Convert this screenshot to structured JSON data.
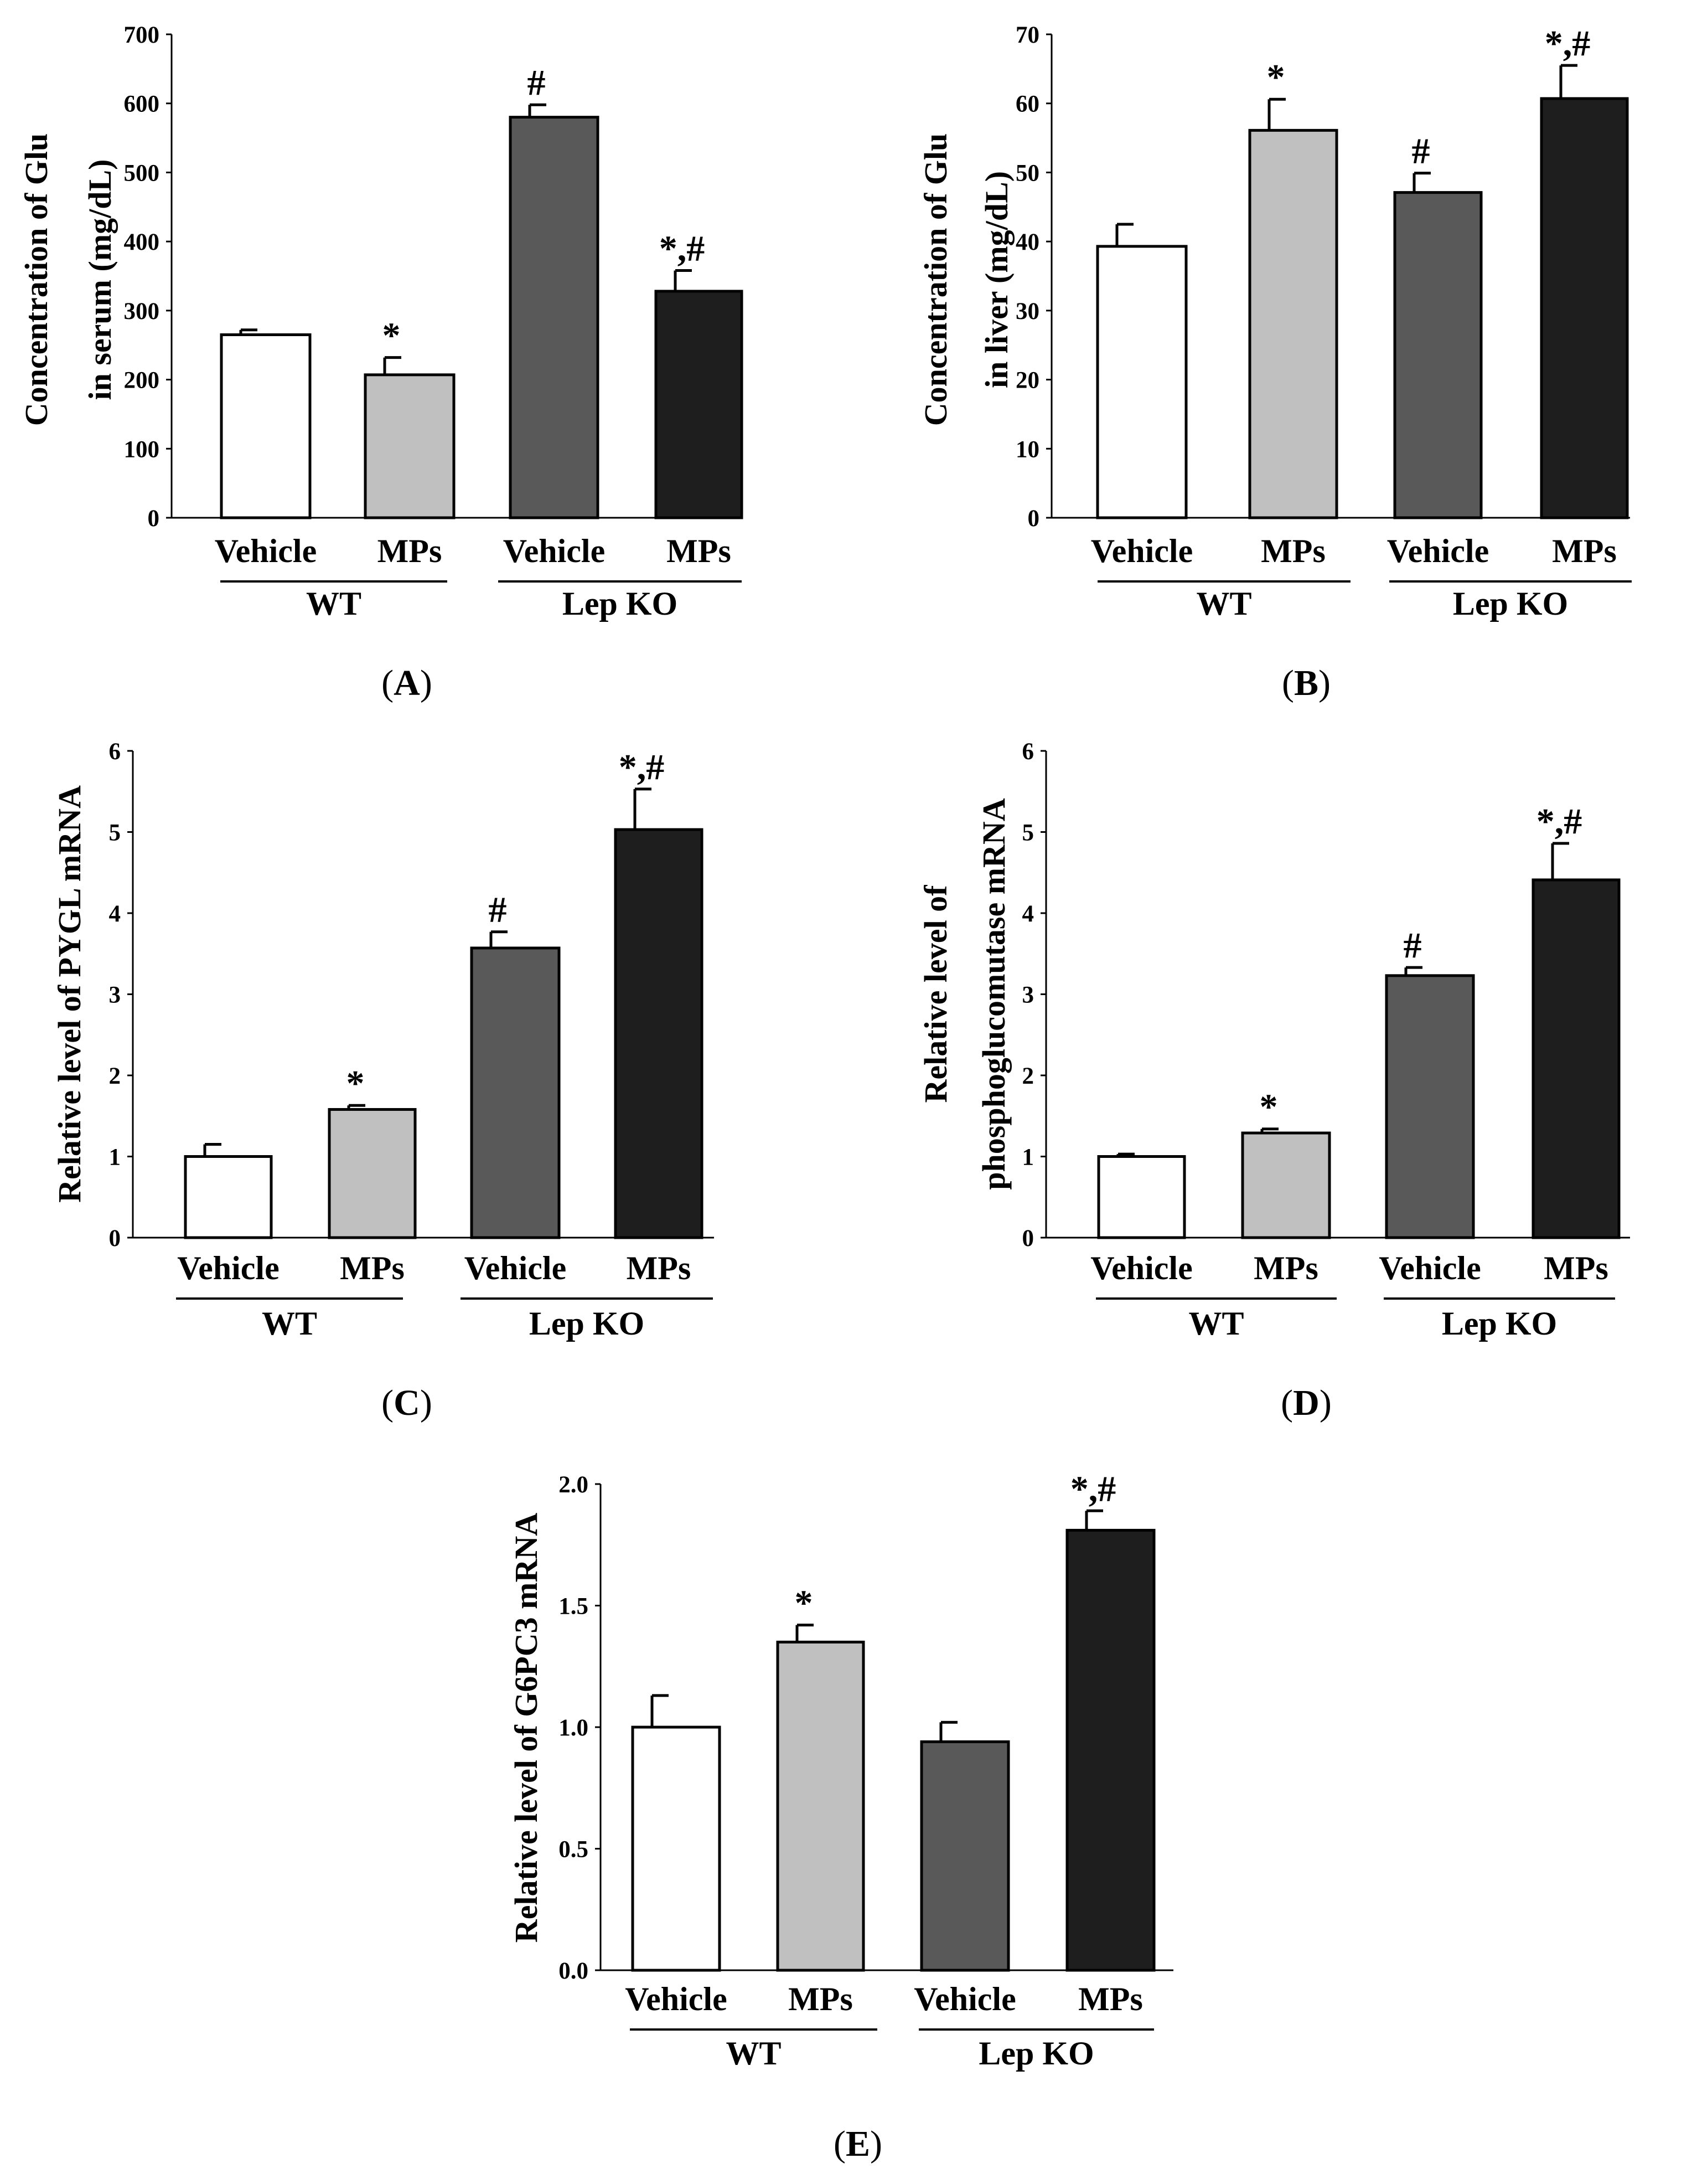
{
  "figure": {
    "bar_colors": [
      "#ffffff",
      "#c0c0c0",
      "#595959",
      "#1e1e1e"
    ],
    "axis_color": "#000000"
  },
  "chart_data": [
    {
      "id": "A",
      "type": "bar",
      "panel_label": "A",
      "ylabel": [
        "Concentration of Glu",
        "in serum (mg/dL)"
      ],
      "ylim": [
        0,
        700
      ],
      "yticks": [
        "0",
        "100",
        "200",
        "300",
        "400",
        "500",
        "600",
        "700"
      ],
      "categories": [
        "Vehicle",
        "MPs",
        "Vehicle",
        "MPs"
      ],
      "groups": [
        {
          "name": "WT",
          "span": [
            0,
            1
          ]
        },
        {
          "name": "Lep KO",
          "span": [
            2,
            3
          ]
        }
      ],
      "values": [
        265,
        207,
        580,
        328
      ],
      "errors": [
        7,
        25,
        18,
        30
      ],
      "annotations": [
        "",
        "*",
        "#",
        "*,#"
      ]
    },
    {
      "id": "B",
      "type": "bar",
      "panel_label": "B",
      "ylabel": [
        "Concentration of Glu",
        "in liver (mg/dL)"
      ],
      "ylim": [
        0,
        70
      ],
      "yticks": [
        "0",
        "10",
        "20",
        "30",
        "40",
        "50",
        "60",
        "70"
      ],
      "categories": [
        "Vehicle",
        "MPs",
        "Vehicle",
        "MPs"
      ],
      "groups": [
        {
          "name": "WT",
          "span": [
            0,
            1
          ]
        },
        {
          "name": "Lep KO",
          "span": [
            2,
            3
          ]
        }
      ],
      "values": [
        39.3,
        56.1,
        47.1,
        60.7
      ],
      "errors": [
        3.2,
        4.5,
        2.8,
        4.8
      ],
      "annotations": [
        "",
        "*",
        "#",
        "*,#"
      ]
    },
    {
      "id": "C",
      "type": "bar",
      "panel_label": "C",
      "ylabel": [
        "Relative level of PYGL mRNA"
      ],
      "ylim": [
        0,
        6
      ],
      "yticks": [
        "0",
        "1",
        "2",
        "3",
        "4",
        "5",
        "6"
      ],
      "categories": [
        "Vehicle",
        "MPs",
        "Vehicle",
        "MPs"
      ],
      "groups": [
        {
          "name": "WT",
          "span": [
            0,
            1
          ]
        },
        {
          "name": "Lep KO",
          "span": [
            2,
            3
          ]
        }
      ],
      "values": [
        1.0,
        1.58,
        3.57,
        5.03
      ],
      "errors": [
        0.15,
        0.05,
        0.2,
        0.5
      ],
      "annotations": [
        "",
        "*",
        "#",
        "*,#"
      ]
    },
    {
      "id": "D",
      "type": "bar",
      "panel_label": "D",
      "ylabel": [
        "Relative level of",
        "phosphoglucomutase mRNA"
      ],
      "ylim": [
        0,
        6
      ],
      "yticks": [
        "0",
        "1",
        "2",
        "3",
        "4",
        "5",
        "6"
      ],
      "categories": [
        "Vehicle",
        "MPs",
        "Vehicle",
        "MPs"
      ],
      "groups": [
        {
          "name": "WT",
          "span": [
            0,
            1
          ]
        },
        {
          "name": "Lep KO",
          "span": [
            2,
            3
          ]
        }
      ],
      "values": [
        1.0,
        1.29,
        3.23,
        4.41
      ],
      "errors": [
        0.03,
        0.05,
        0.1,
        0.45
      ],
      "annotations": [
        "",
        "*",
        "#",
        "*,#"
      ]
    },
    {
      "id": "E",
      "type": "bar",
      "panel_label": "E",
      "ylabel": [
        "Relative level of G6PC3 mRNA"
      ],
      "ylim": [
        0,
        2
      ],
      "yticks": [
        "0.0",
        "0.5",
        "1.0",
        "1.5",
        "2.0"
      ],
      "categories": [
        "Vehicle",
        "MPs",
        "Vehicle",
        "MPs"
      ],
      "groups": [
        {
          "name": "WT",
          "span": [
            0,
            1
          ]
        },
        {
          "name": "Lep KO",
          "span": [
            2,
            3
          ]
        }
      ],
      "values": [
        1.0,
        1.35,
        0.94,
        1.81
      ],
      "errors": [
        0.13,
        0.07,
        0.08,
        0.08
      ],
      "annotations": [
        "",
        "*",
        "",
        "*,#"
      ]
    }
  ]
}
